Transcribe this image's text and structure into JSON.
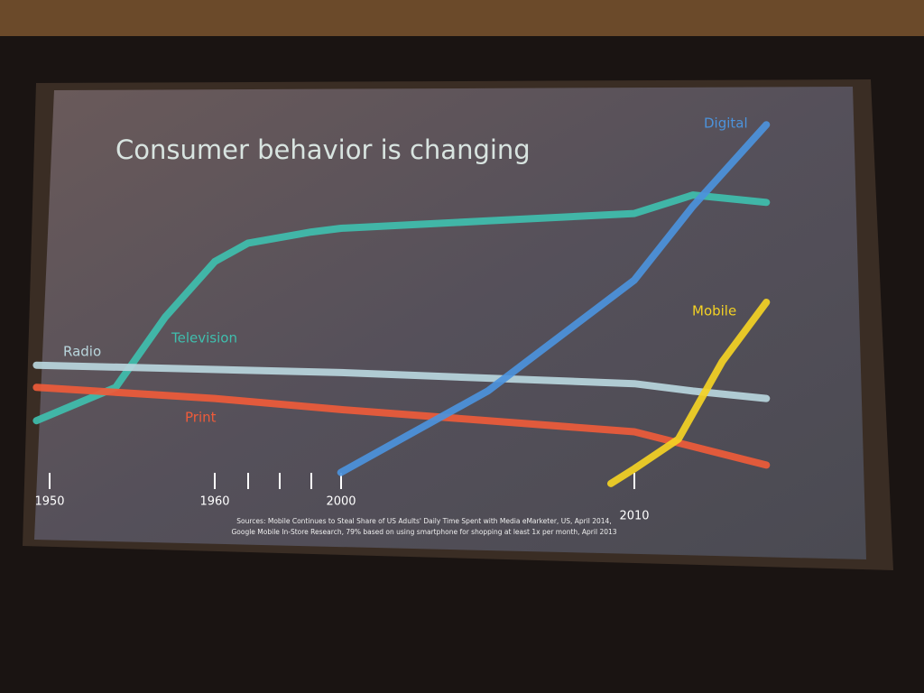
{
  "chart_data": {
    "type": "line",
    "title": "Consumer behavior is changing",
    "sources": [
      "Sources: Mobile Continues to Steal Share of US Adults' Daily Time Spent with Media eMarketer, US, April 2014,",
      "Google Mobile In-Store Research, 79% based on using smartphone for shopping at least 1x per month, April 2013"
    ],
    "xlim": [
      1949,
      2015
    ],
    "xticks": [
      1950,
      1960,
      {
        "value": 1970,
        "label": null
      },
      {
        "value": 1980,
        "label": null
      },
      {
        "value": 1990,
        "label": null
      },
      2000,
      2010
    ],
    "ylim": [
      0,
      100
    ],
    "series": [
      {
        "name": "Television",
        "color": "#3fbfae",
        "x": [
          1949.2,
          1954,
          1957,
          1960,
          1970,
          1990,
          2000,
          2005,
          2010,
          2012,
          2014.5
        ],
        "values": [
          18,
          27,
          46,
          61,
          66,
          69,
          70,
          72,
          74,
          79,
          77
        ]
      },
      {
        "name": "Radio",
        "color": "#b9d6dd",
        "x": [
          1949.2,
          2000,
          2010,
          2012,
          2014.5
        ],
        "values": [
          33,
          31,
          28,
          26,
          24
        ]
      },
      {
        "name": "Print",
        "color": "#ee5b3a",
        "x": [
          1949.2,
          1960,
          2000,
          2010,
          2012,
          2014.5
        ],
        "values": [
          27,
          24,
          21,
          15,
          11,
          6
        ]
      },
      {
        "name": "Digital",
        "color": "#4c93dc",
        "x": [
          1999.9,
          2005,
          2010,
          2012,
          2014.5
        ],
        "values": [
          4,
          26,
          56,
          76,
          98
        ]
      },
      {
        "name": "Mobile",
        "color": "#f4d224",
        "x": [
          2009.2,
          2010,
          2011.5,
          2013,
          2014.5
        ],
        "values": [
          1,
          5,
          13,
          34,
          50
        ]
      }
    ]
  }
}
